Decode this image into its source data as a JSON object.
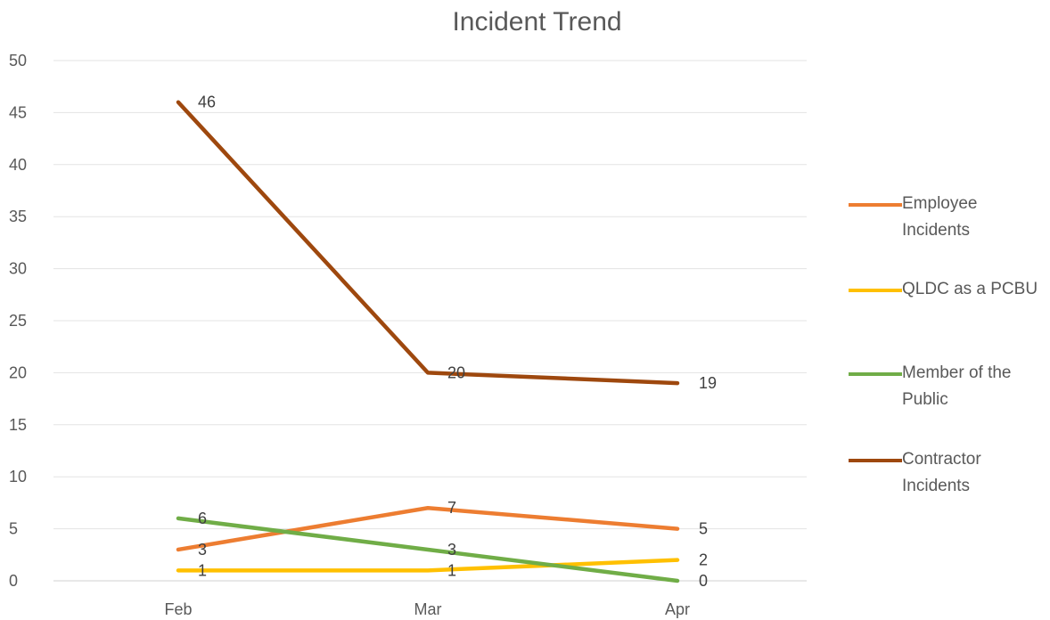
{
  "chart_data": {
    "type": "line",
    "title": "Incident Trend",
    "categories": [
      "Feb",
      "Mar",
      "Apr"
    ],
    "ylim": [
      0,
      50
    ],
    "yticks": [
      0,
      5,
      10,
      15,
      20,
      25,
      30,
      35,
      40,
      45,
      50
    ],
    "grid": true,
    "legend_position": "right",
    "series": [
      {
        "name": "Employee Incidents",
        "values": [
          3,
          7,
          5
        ],
        "color": "#ED7D31"
      },
      {
        "name": "QLDC as a PCBU",
        "values": [
          1,
          1,
          2
        ],
        "color": "#FFC000"
      },
      {
        "name": "Member of the Public",
        "values": [
          6,
          3,
          0
        ],
        "color": "#70AD47"
      },
      {
        "name": "Contractor Incidents",
        "values": [
          46,
          20,
          19
        ],
        "color": "#9E480E"
      }
    ]
  }
}
